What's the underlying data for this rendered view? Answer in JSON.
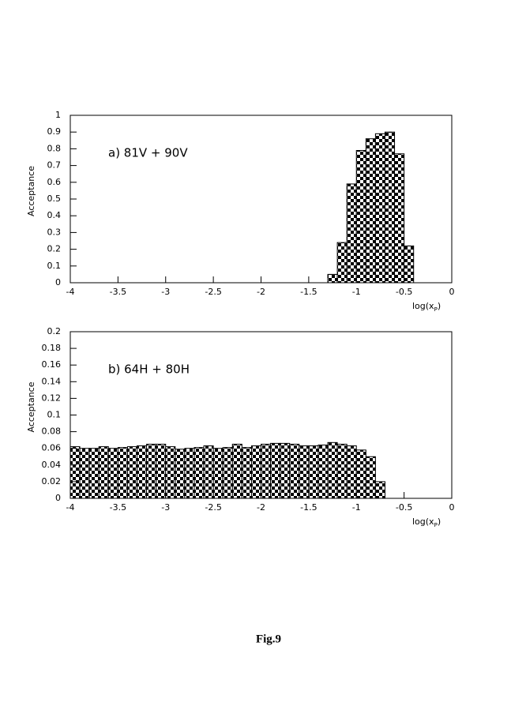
{
  "caption": "Fig.9",
  "chart_data": [
    {
      "type": "histogram",
      "annotation": "a) 81V + 90V",
      "ylabel": "Acceptance",
      "xlabel_parts": [
        "log(x",
        "P",
        ")"
      ],
      "bins": [
        -4,
        -3.9,
        -3.8,
        -3.7,
        -3.6,
        -3.5,
        -3.4,
        -3.3,
        -3.2,
        -3.1,
        -3,
        -2.9,
        -2.8,
        -2.7,
        -2.6,
        -2.5,
        -2.4,
        -2.3,
        -2.2,
        -2.1,
        -2,
        -1.9,
        -1.8,
        -1.7,
        -1.6,
        -1.5,
        -1.4,
        -1.3,
        -1.2,
        -1.1,
        -1,
        -0.9,
        -0.8,
        -0.7,
        -0.6,
        -0.5,
        -0.4,
        -0.3,
        -0.2,
        -0.1,
        0
      ],
      "counts": [
        0,
        0,
        0,
        0,
        0,
        0,
        0,
        0,
        0,
        0,
        0,
        0,
        0,
        0,
        0,
        0,
        0,
        0,
        0,
        0,
        0,
        0,
        0,
        0,
        0,
        0,
        0,
        0.05,
        0.24,
        0.59,
        0.79,
        0.86,
        0.89,
        0.9,
        0.77,
        0.22,
        0,
        0,
        0,
        0
      ],
      "color": "#000000",
      "xlim": [
        -4,
        0
      ],
      "xticks": [
        -4,
        -3.5,
        -3,
        -2.5,
        -2,
        -1.5,
        -1,
        -0.5,
        0
      ],
      "ylim": [
        0,
        1
      ],
      "yticks": [
        0,
        0.1,
        0.2,
        0.3,
        0.4,
        0.5,
        0.6,
        0.7,
        0.8,
        0.9,
        1
      ]
    },
    {
      "type": "histogram",
      "annotation": "b) 64H + 80H",
      "ylabel": "Acceptance",
      "xlabel_parts": [
        "log(x",
        "P",
        ")"
      ],
      "bins": [
        -4,
        -3.9,
        -3.8,
        -3.7,
        -3.6,
        -3.5,
        -3.4,
        -3.3,
        -3.2,
        -3.1,
        -3,
        -2.9,
        -2.8,
        -2.7,
        -2.6,
        -2.5,
        -2.4,
        -2.3,
        -2.2,
        -2.1,
        -2,
        -1.9,
        -1.8,
        -1.7,
        -1.6,
        -1.5,
        -1.4,
        -1.3,
        -1.2,
        -1.1,
        -1,
        -0.9,
        -0.8,
        -0.7,
        -0.6,
        -0.5,
        -0.4,
        -0.3,
        -0.2,
        -0.1,
        0
      ],
      "counts": [
        0.062,
        0.06,
        0.06,
        0.062,
        0.06,
        0.061,
        0.062,
        0.063,
        0.065,
        0.065,
        0.062,
        0.059,
        0.06,
        0.061,
        0.063,
        0.06,
        0.061,
        0.065,
        0.061,
        0.063,
        0.065,
        0.066,
        0.066,
        0.065,
        0.063,
        0.063,
        0.064,
        0.067,
        0.065,
        0.063,
        0.058,
        0.05,
        0.02,
        0,
        0,
        0,
        0,
        0,
        0,
        0
      ],
      "color": "#000000",
      "xlim": [
        -4,
        0
      ],
      "xticks": [
        -4,
        -3.5,
        -3,
        -2.5,
        -2,
        -1.5,
        -1,
        -0.5,
        0
      ],
      "ylim": [
        0,
        0.2
      ],
      "yticks": [
        0,
        0.02,
        0.04,
        0.06,
        0.08,
        0.1,
        0.12,
        0.14,
        0.16,
        0.18,
        0.2
      ]
    }
  ]
}
